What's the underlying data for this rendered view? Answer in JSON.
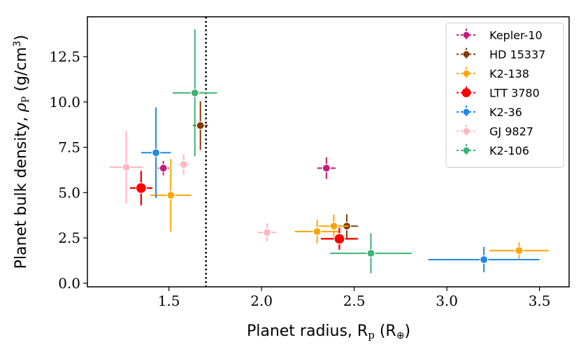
{
  "chart_data": {
    "type": "scatter",
    "xlabel": "Planet radius, R",
    "xlabel_sub": "p",
    "xlabel_unit_open": " (R",
    "xlabel_unit_sub": "⊕",
    "xlabel_unit_close": ")",
    "ylabel": "Planet bulk density, ",
    "ylabel_sym": "ρ",
    "ylabel_sym_sub": "P",
    "ylabel_unit_open": " (g/cm",
    "ylabel_unit_sup": "3",
    "ylabel_unit_close": ")",
    "xlim": [
      1.06,
      3.66
    ],
    "ylim": [
      -0.2,
      14.7
    ],
    "xticks": [
      1.5,
      2.0,
      2.5,
      3.0,
      3.5
    ],
    "xtick_labels": [
      "1.5",
      "2.0",
      "2.5",
      "3.0",
      "3.5"
    ],
    "yticks": [
      0.0,
      2.5,
      5.0,
      7.5,
      10.0,
      12.5
    ],
    "ytick_labels": [
      "0.0",
      "2.5",
      "5.0",
      "7.5",
      "10.0",
      "12.5"
    ],
    "vline_x": 1.7,
    "legend_position": "upper-right",
    "series": [
      {
        "name": "Kepler-10",
        "color": "#c51b7d",
        "highlight": false,
        "points": [
          {
            "x": 1.47,
            "xerr": 0.03,
            "y": 6.35,
            "yerr": 0.4
          },
          {
            "x": 2.35,
            "xerr": 0.05,
            "y": 6.35,
            "yerr": 0.6
          }
        ]
      },
      {
        "name": "HD 15337",
        "color": "#7f3b08",
        "highlight": false,
        "points": [
          {
            "x": 1.67,
            "xerr": 0.04,
            "y": 8.7,
            "yerr": 1.35
          },
          {
            "x": 2.46,
            "xerr": 0.06,
            "y": 3.15,
            "yerr": 0.65
          }
        ]
      },
      {
        "name": "K2-138",
        "color": "#ffa500",
        "highlight": false,
        "points": [
          {
            "x": 1.51,
            "xerr": 0.11,
            "y": 4.85,
            "yerr": 2.0
          },
          {
            "x": 2.3,
            "xerr": 0.12,
            "y": 2.85,
            "yerr": 0.65
          },
          {
            "x": 2.39,
            "xerr": 0.08,
            "y": 3.15,
            "yerr": 0.65
          },
          {
            "x": 3.39,
            "xerr": 0.16,
            "y": 1.8,
            "yerr": 0.45
          }
        ]
      },
      {
        "name": "LTT 3780",
        "color": "#ff0000",
        "highlight": true,
        "points": [
          {
            "x": 1.35,
            "xerr": 0.06,
            "y": 5.25,
            "yerr": 0.95
          },
          {
            "x": 2.42,
            "xerr": 0.1,
            "y": 2.45,
            "yerr": 0.6
          }
        ]
      },
      {
        "name": "K2-36",
        "color": "#1e88e5",
        "highlight": false,
        "points": [
          {
            "x": 1.43,
            "xerr": 0.08,
            "y": 7.2,
            "yerr": 2.5
          },
          {
            "x": 3.2,
            "xerr": 0.3,
            "y": 1.3,
            "yerr": 0.7
          }
        ]
      },
      {
        "name": "GJ 9827",
        "color": "#ffb6c1",
        "highlight": false,
        "points": [
          {
            "x": 1.27,
            "xerr": 0.09,
            "y": 6.4,
            "yerr": 2.0
          },
          {
            "x": 1.58,
            "xerr": 0.03,
            "y": 6.55,
            "yerr": 0.55
          },
          {
            "x": 2.03,
            "xerr": 0.05,
            "y": 2.8,
            "yerr": 0.5
          }
        ]
      },
      {
        "name": "K2-106",
        "color": "#3cb371",
        "highlight": false,
        "points": [
          {
            "x": 1.64,
            "xerr": 0.12,
            "y": 10.5,
            "yerr": 3.5
          },
          {
            "x": 2.59,
            "xerr": 0.22,
            "y": 1.65,
            "yerr": 1.1
          }
        ]
      }
    ]
  }
}
